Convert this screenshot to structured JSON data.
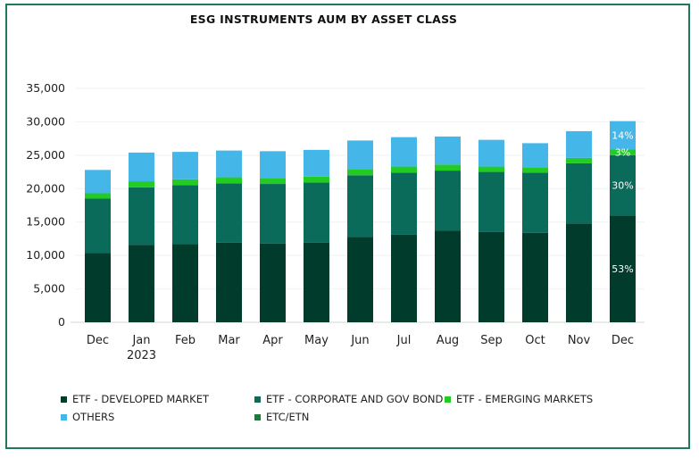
{
  "chart_data": {
    "type": "bar",
    "stacked": true,
    "title": "ESG INSTRUMENTS AUM BY ASSET CLASS",
    "categories": [
      "Dec",
      "Jan\n2023",
      "Feb",
      "Mar",
      "Apr",
      "May",
      "Jun",
      "Jul",
      "Aug",
      "Sep",
      "Oct",
      "Nov",
      "Dec"
    ],
    "ylim": [
      0,
      35000
    ],
    "yticks": [
      0,
      5000,
      10000,
      15000,
      20000,
      25000,
      30000,
      35000
    ],
    "ytick_labels": [
      "0",
      "5,000",
      "10,000",
      "15,000",
      "20,000",
      "25,000",
      "30,000",
      "35,000"
    ],
    "grid": true,
    "legend_position": "bottom",
    "series": [
      {
        "name": "ETF - DEVELOPED MARKET",
        "color": "#003b2c",
        "values": [
          10400,
          11600,
          11700,
          11900,
          11800,
          11900,
          12800,
          13100,
          13700,
          13500,
          13400,
          14800,
          16000
        ]
      },
      {
        "name": "ETF - CORPORATE AND GOV BOND",
        "color": "#0a6b5a",
        "values": [
          8100,
          8600,
          8800,
          8900,
          8900,
          9000,
          9200,
          9300,
          9000,
          9000,
          9000,
          9000,
          9000
        ]
      },
      {
        "name": "ETF - EMERGING MARKETS",
        "color": "#22cc22",
        "values": [
          800,
          900,
          900,
          900,
          900,
          900,
          900,
          900,
          900,
          800,
          800,
          800,
          900
        ]
      },
      {
        "name": "OTHERS",
        "color": "#45b6e8",
        "values": [
          3500,
          4300,
          4100,
          4000,
          4000,
          4000,
          4300,
          4400,
          4200,
          4000,
          3600,
          4000,
          4200
        ]
      },
      {
        "name": "ETC/ETN",
        "color": "#1e7a3a",
        "values": [
          0,
          0,
          0,
          0,
          0,
          0,
          0,
          0,
          0,
          0,
          0,
          0,
          0
        ]
      }
    ],
    "annotations": [
      {
        "series": "ETF - DEVELOPED MARKET",
        "category_index": 12,
        "text": "53%"
      },
      {
        "series": "ETF - CORPORATE AND GOV BOND",
        "category_index": 12,
        "text": "30%"
      },
      {
        "series": "ETF - EMERGING MARKETS",
        "category_index": 12,
        "text": "3%"
      },
      {
        "series": "OTHERS",
        "category_index": 12,
        "text": "14%"
      }
    ]
  }
}
